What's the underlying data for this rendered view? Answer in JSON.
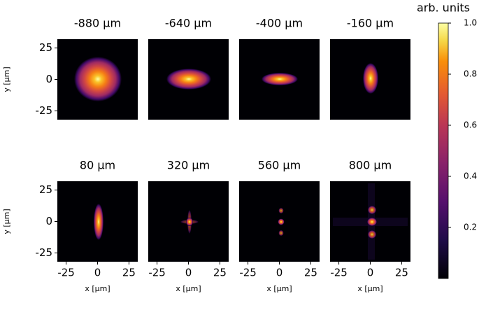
{
  "chart_data": [
    {
      "type": "heatmap",
      "title": "-880 μm",
      "xlim": [
        -32,
        32
      ],
      "ylim": [
        -32,
        32
      ],
      "yticks": [
        25,
        0,
        -25
      ],
      "ylabel": "y [μm]"
    },
    {
      "type": "heatmap",
      "title": "-640 μm",
      "xlim": [
        -32,
        32
      ],
      "ylim": [
        -32,
        32
      ]
    },
    {
      "type": "heatmap",
      "title": "-400 μm",
      "xlim": [
        -32,
        32
      ],
      "ylim": [
        -32,
        32
      ]
    },
    {
      "type": "heatmap",
      "title": "-160 μm",
      "xlim": [
        -32,
        32
      ],
      "ylim": [
        -32,
        32
      ]
    },
    {
      "type": "heatmap",
      "title": "80 μm",
      "xlim": [
        -32,
        32
      ],
      "ylim": [
        -32,
        32
      ],
      "yticks": [
        25,
        0,
        -25
      ],
      "ylabel": "y [μm]",
      "xticks": [
        -25,
        0,
        25
      ],
      "xlabel": "x [μm]"
    },
    {
      "type": "heatmap",
      "title": "320 μm",
      "xlim": [
        -32,
        32
      ],
      "ylim": [
        -32,
        32
      ],
      "xticks": [
        -25,
        0,
        25
      ],
      "xlabel": "x [μm]"
    },
    {
      "type": "heatmap",
      "title": "560 μm",
      "xlim": [
        -32,
        32
      ],
      "ylim": [
        -32,
        32
      ],
      "xticks": [
        -25,
        0,
        25
      ],
      "xlabel": "x [μm]"
    },
    {
      "type": "heatmap",
      "title": "800 μm",
      "xlim": [
        -32,
        32
      ],
      "ylim": [
        -32,
        32
      ],
      "xticks": [
        -25,
        0,
        25
      ],
      "xlabel": "x [μm]"
    },
    {
      "type": "colorbar",
      "label": "arb. units",
      "ylim": [
        0,
        1
      ],
      "yticks": [
        {
          "value": 0.2,
          "label": "0.2"
        },
        {
          "value": 0.4,
          "label": "0.4"
        },
        {
          "value": 0.6,
          "label": "0.6"
        },
        {
          "value": 0.8,
          "label": "0.8"
        },
        {
          "value": 1,
          "label": "1.0"
        }
      ]
    }
  ]
}
